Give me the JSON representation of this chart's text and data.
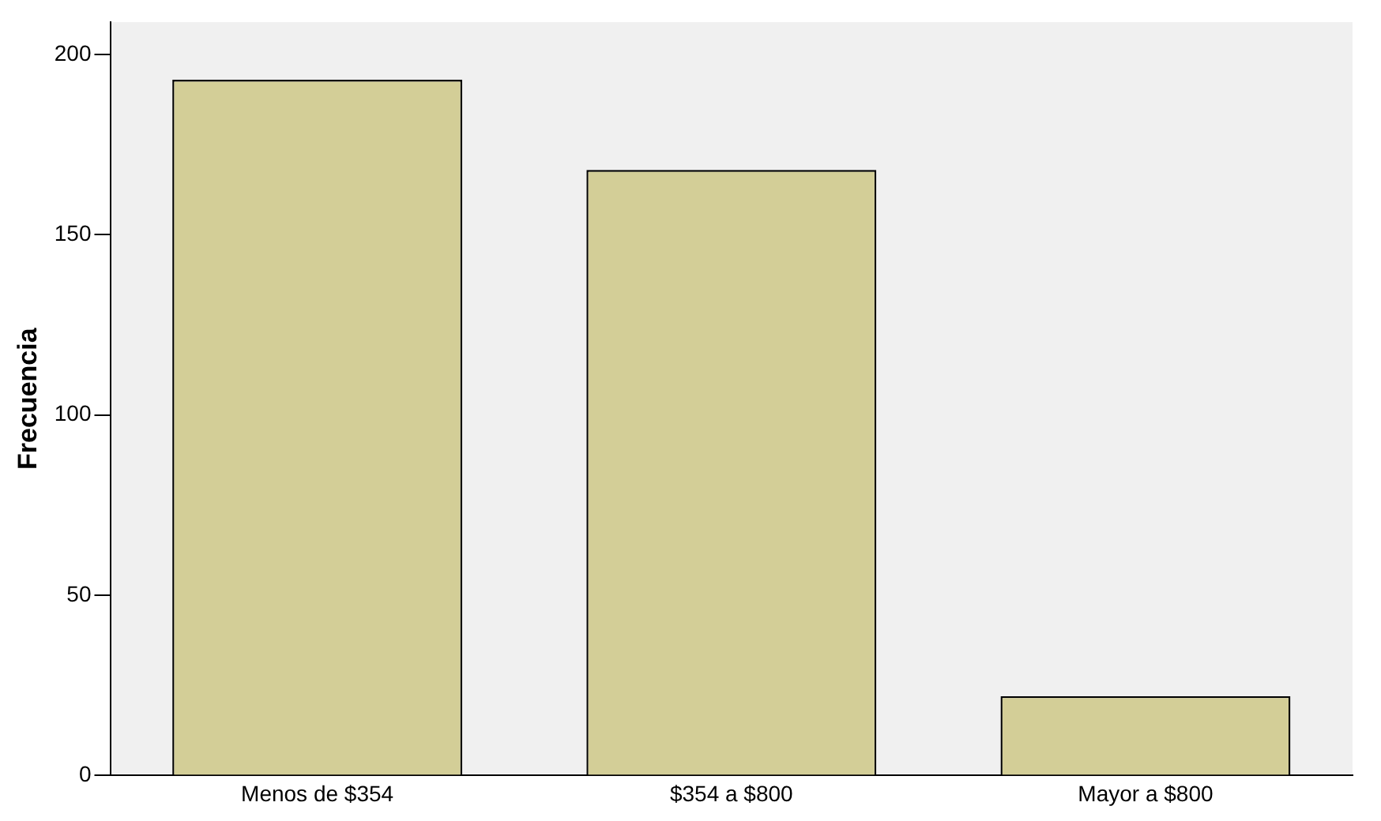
{
  "chart_data": {
    "type": "bar",
    "ylabel": "Frecuencia",
    "categories": [
      "Menos de $354",
      "$354 a $800",
      "Mayor a $800"
    ],
    "values": [
      193,
      168,
      22
    ],
    "color": "#d3ce97",
    "ylim": [
      0,
      209
    ],
    "yticks": [
      0,
      50,
      100,
      150,
      200
    ],
    "grid": false,
    "legend": false
  }
}
